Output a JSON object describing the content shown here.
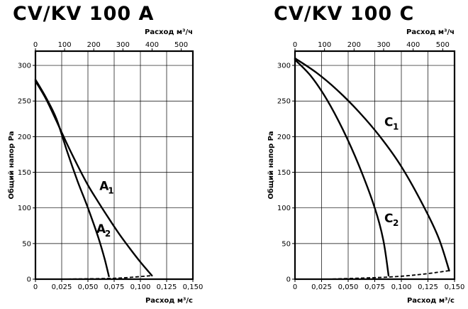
{
  "chart_data": [
    {
      "type": "line",
      "title": "CV/KV 100 A",
      "xlabel": "Расход м³/с",
      "x2label": "Расход м³/ч",
      "ylabel": "Общий напор Pa",
      "xlim": [
        0,
        0.15
      ],
      "x2lim": [
        0,
        540
      ],
      "ylim": [
        0,
        320
      ],
      "x_ticks": [
        "0",
        "0,025",
        "0,050",
        "0,075",
        "0,100",
        "0,125",
        "0,150"
      ],
      "x2_ticks": [
        "0",
        "100",
        "200",
        "300",
        "400",
        "500"
      ],
      "y_ticks": [
        "0",
        "50",
        "100",
        "150",
        "200",
        "250",
        "300"
      ],
      "grid": true,
      "series": [
        {
          "label_main": "A",
          "label_sub": "1",
          "label_at": [
            0.061,
            125
          ],
          "points": [
            [
              0,
              278
            ],
            [
              0.01,
              253
            ],
            [
              0.02,
              222
            ],
            [
              0.03,
              190
            ],
            [
              0.04,
              160
            ],
            [
              0.05,
              132
            ],
            [
              0.06,
              108
            ],
            [
              0.07,
              85
            ],
            [
              0.08,
              63
            ],
            [
              0.09,
              43
            ],
            [
              0.1,
              24
            ],
            [
              0.111,
              5
            ]
          ],
          "style": "solid"
        },
        {
          "label_main": "A",
          "label_sub": "2",
          "label_at": [
            0.058,
            65
          ],
          "points": [
            [
              0,
              280
            ],
            [
              0.01,
              255
            ],
            [
              0.02,
              225
            ],
            [
              0.03,
              180
            ],
            [
              0.04,
              138
            ],
            [
              0.05,
              100
            ],
            [
              0.06,
              58
            ],
            [
              0.066,
              28
            ],
            [
              0.07,
              4
            ]
          ],
          "style": "solid"
        },
        {
          "label_main": "",
          "label_sub": "",
          "label_at": [
            0,
            0
          ],
          "points": [
            [
              0.025,
              0
            ],
            [
              0.07,
              1
            ],
            [
              0.09,
              2.5
            ],
            [
              0.111,
              5
            ]
          ],
          "style": "dashed"
        }
      ]
    },
    {
      "type": "line",
      "title": "CV/KV 100 C",
      "xlabel": "Расход м³/с",
      "x2label": "Расход м³/ч",
      "ylabel": "Общий напор Pa",
      "xlim": [
        0,
        0.15
      ],
      "x2lim": [
        0,
        540
      ],
      "ylim": [
        0,
        320
      ],
      "x_ticks": [
        "0",
        "0,025",
        "0,050",
        "0,075",
        "0,100",
        "0,125",
        "0,150"
      ],
      "x2_ticks": [
        "0",
        "100",
        "200",
        "300",
        "400",
        "500"
      ],
      "y_ticks": [
        "0",
        "50",
        "100",
        "150",
        "200",
        "250",
        "300"
      ],
      "grid": true,
      "series": [
        {
          "label_main": "C",
          "label_sub": "1",
          "label_at": [
            0.084,
            215
          ],
          "points": [
            [
              0,
              310
            ],
            [
              0.02,
              290
            ],
            [
              0.04,
              265
            ],
            [
              0.06,
              235
            ],
            [
              0.08,
              200
            ],
            [
              0.1,
              158
            ],
            [
              0.12,
              105
            ],
            [
              0.135,
              58
            ],
            [
              0.145,
              12
            ]
          ],
          "style": "solid"
        },
        {
          "label_main": "C",
          "label_sub": "2",
          "label_at": [
            0.084,
            80
          ],
          "points": [
            [
              0,
              308
            ],
            [
              0.015,
              285
            ],
            [
              0.03,
              252
            ],
            [
              0.045,
              210
            ],
            [
              0.06,
              160
            ],
            [
              0.075,
              100
            ],
            [
              0.083,
              55
            ],
            [
              0.088,
              5
            ]
          ],
          "style": "solid"
        },
        {
          "label_main": "",
          "label_sub": "",
          "label_at": [
            0,
            0
          ],
          "points": [
            [
              0.03,
              0
            ],
            [
              0.088,
              3
            ],
            [
              0.12,
              7
            ],
            [
              0.145,
              12
            ]
          ],
          "style": "dashed"
        }
      ]
    }
  ]
}
